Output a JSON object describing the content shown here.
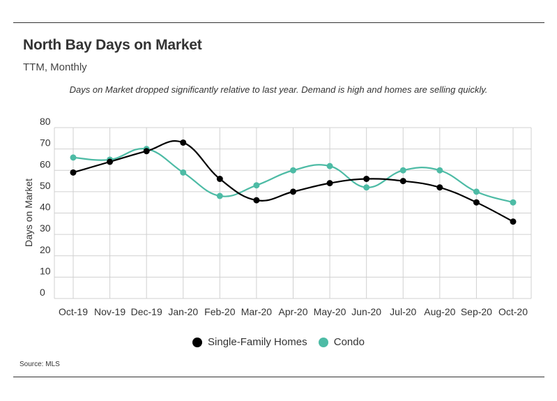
{
  "title": "North Bay Days on Market",
  "subtitle": "TTM, Monthly",
  "annotation": "Days on Market dropped significantly relative to last year. Demand is high and homes are selling quickly.",
  "source": "Source:  MLS",
  "chart_data": {
    "type": "line",
    "categories": [
      "Oct-19",
      "Nov-19",
      "Dec-19",
      "Jan-20",
      "Feb-20",
      "Mar-20",
      "Apr-20",
      "May-20",
      "Jun-20",
      "Jul-20",
      "Aug-20",
      "Sep-20",
      "Oct-20"
    ],
    "ylabel": "Days on Market",
    "ylim": [
      0,
      80
    ],
    "yticks": [
      0,
      10,
      20,
      30,
      40,
      50,
      60,
      70,
      80
    ],
    "grid": true,
    "legend_position": "bottom",
    "series": [
      {
        "name": "Single-Family Homes",
        "color": "#000000",
        "values": [
          59,
          64,
          69,
          73,
          56,
          46,
          50,
          54,
          56,
          55,
          52,
          45,
          36
        ]
      },
      {
        "name": "Condo",
        "color": "#4dbba5",
        "values": [
          66,
          65,
          70,
          59,
          48,
          53,
          60,
          62,
          52,
          60,
          60,
          50,
          45
        ]
      }
    ]
  }
}
